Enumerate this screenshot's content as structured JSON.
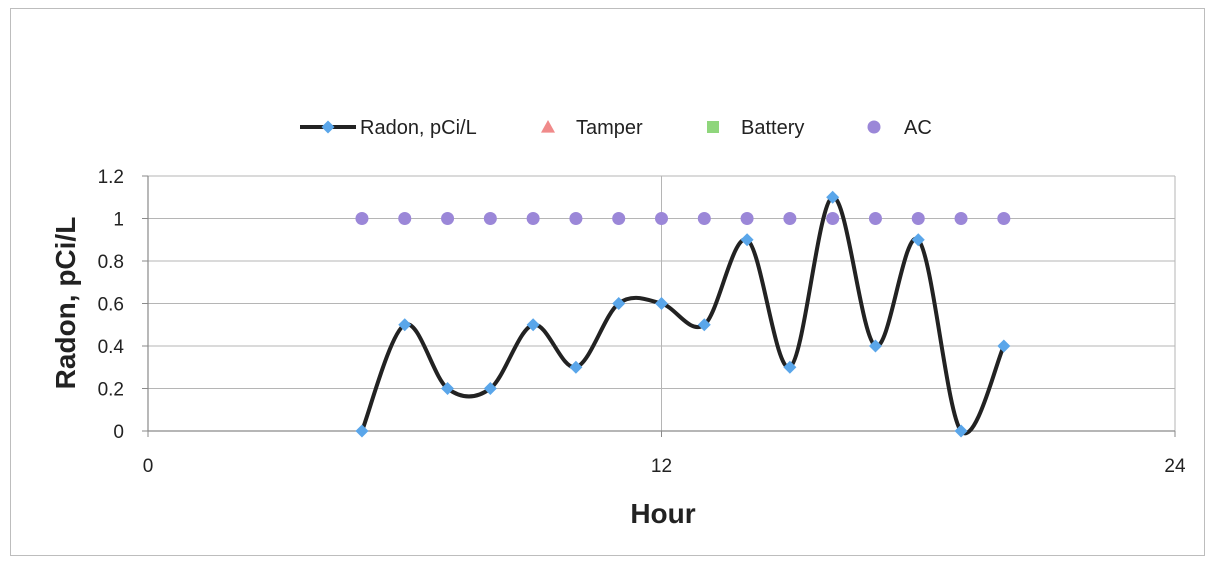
{
  "chart_data": {
    "type": "line",
    "title": "",
    "xlabel": "Hour",
    "ylabel": "Radon, pCi/L",
    "xlim": [
      0,
      24
    ],
    "ylim": [
      0,
      1.2
    ],
    "x_ticks": [
      "0",
      "12",
      "24"
    ],
    "y_ticks": [
      "0",
      "0.2",
      "0.4",
      "0.6",
      "0.8",
      "1",
      "1.2"
    ],
    "grid": true,
    "legend_position": "top",
    "series": [
      {
        "name": "Radon, pCi/L",
        "style": "smoothed line with diamond markers",
        "line_color": "#222222",
        "marker_color": "#5aa6ea",
        "x": [
          5,
          6,
          7,
          8,
          9,
          10,
          11,
          12,
          13,
          14,
          15,
          16,
          17,
          18,
          19,
          20
        ],
        "y": [
          0,
          0.5,
          0.2,
          0.2,
          0.5,
          0.3,
          0.6,
          0.6,
          0.5,
          0.9,
          0.3,
          1.1,
          0.4,
          0.9,
          0,
          0.4
        ]
      },
      {
        "name": "Tamper",
        "style": "triangle markers",
        "marker_color": "#f08a8a",
        "x": [],
        "y": []
      },
      {
        "name": "Battery",
        "style": "square markers",
        "marker_color": "#8fd67c",
        "x": [],
        "y": []
      },
      {
        "name": "AC",
        "style": "circle markers",
        "marker_color": "#9b87d8",
        "x": [
          5,
          6,
          7,
          8,
          9,
          10,
          11,
          12,
          13,
          14,
          15,
          16,
          17,
          18,
          19,
          20
        ],
        "y": [
          1,
          1,
          1,
          1,
          1,
          1,
          1,
          1,
          1,
          1,
          1,
          1,
          1,
          1,
          1,
          1
        ]
      }
    ]
  }
}
